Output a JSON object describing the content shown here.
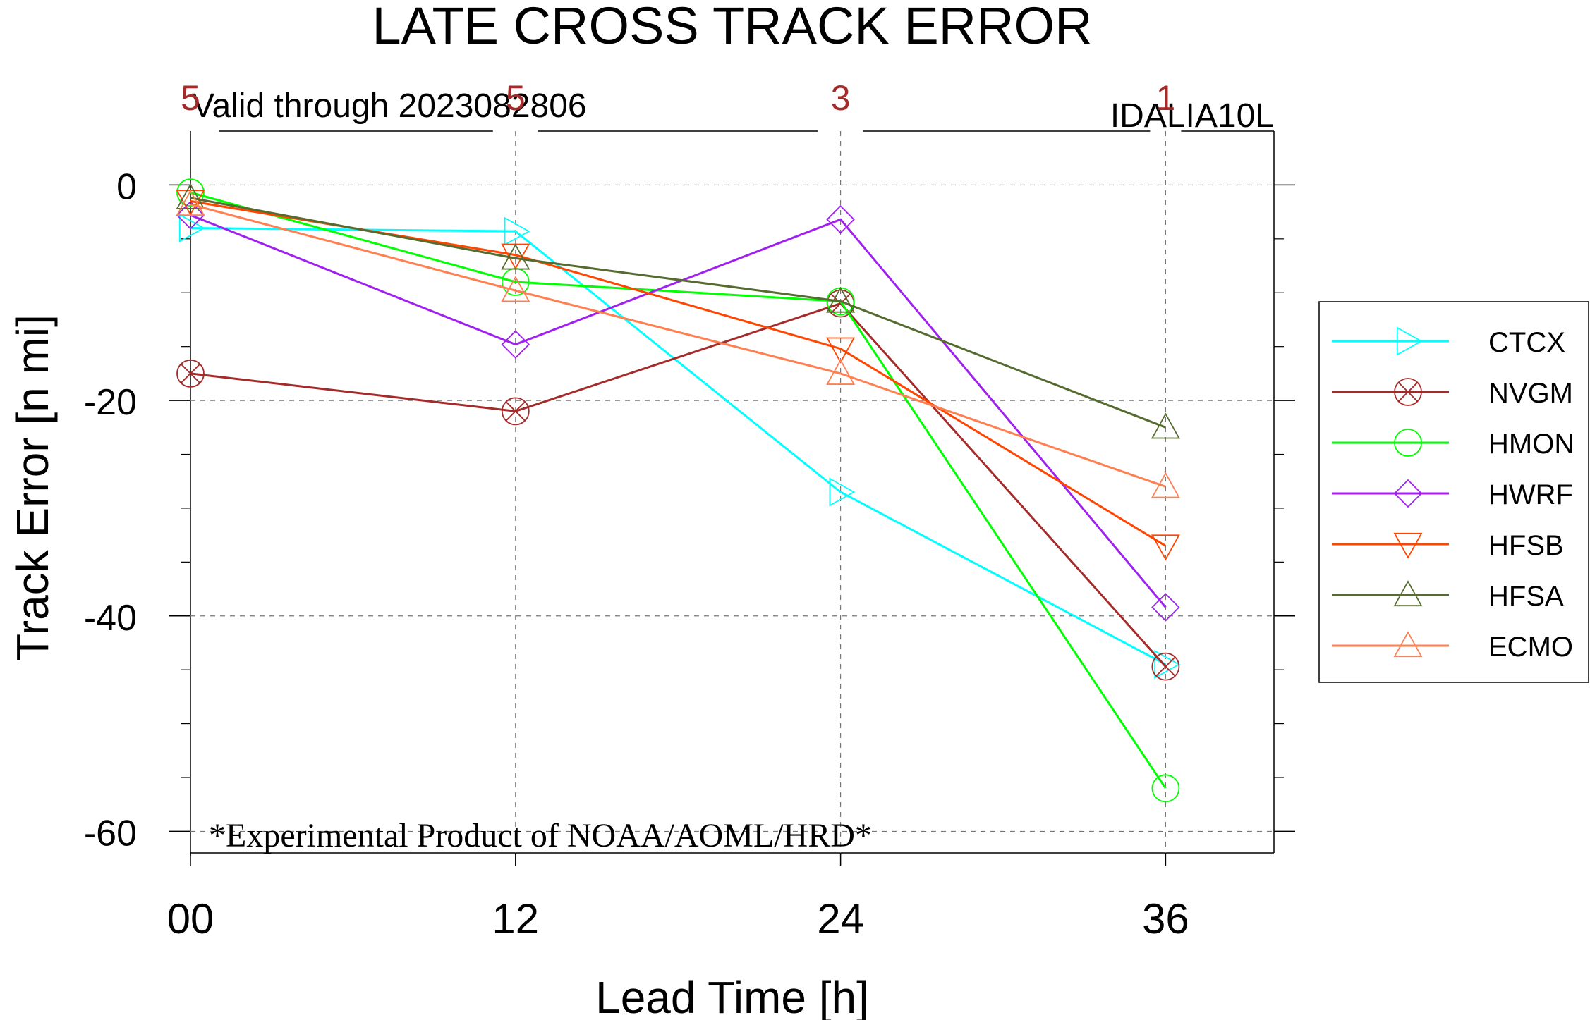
{
  "chart_data": {
    "type": "line",
    "title": "LATE CROSS TRACK ERROR",
    "subtitle_left": "Valid through 2023082806",
    "subtitle_right": "IDALIA10L",
    "xlabel": "Lead Time [h]",
    "ylabel": "Track Error [n mi]",
    "footnote": "*Experimental Product of NOAA/AOML/HRD*",
    "x": [
      0,
      12,
      24,
      36
    ],
    "x_tick_labels": [
      "00",
      "12",
      "24",
      "36"
    ],
    "y_ticks": [
      0,
      -20,
      -40,
      -60
    ],
    "y_tick_labels": [
      "0",
      "-20",
      "-40",
      "-60"
    ],
    "xlim": [
      0,
      40
    ],
    "ylim": [
      -62,
      5
    ],
    "case_counts": [
      "5",
      "5",
      "3",
      "1"
    ],
    "grid": true,
    "legend_position": "right",
    "series": [
      {
        "name": "CTCX",
        "color": "#00ffff",
        "marker": "triangle-right",
        "values": [
          -4,
          -4.3,
          -28.5,
          -44.5
        ]
      },
      {
        "name": "NVGM",
        "color": "#a52a2a",
        "marker": "circle-x",
        "values": [
          -17.5,
          -21,
          -11,
          -44.7
        ]
      },
      {
        "name": "HMON",
        "color": "#00ff00",
        "marker": "circle",
        "values": [
          -0.7,
          -9,
          -10.8,
          -56
        ]
      },
      {
        "name": "HWRF",
        "color": "#a020f0",
        "marker": "diamond",
        "values": [
          -2.8,
          -14.8,
          -3.2,
          -39.2
        ]
      },
      {
        "name": "HFSB",
        "color": "#ff4500",
        "marker": "triangle-down",
        "values": [
          -1.5,
          -6.5,
          -15.2,
          -33.5
        ]
      },
      {
        "name": "HFSA",
        "color": "#556b2f",
        "marker": "triangle-up",
        "values": [
          -1.2,
          -6.8,
          -10.8,
          -22.5
        ]
      },
      {
        "name": "ECMO",
        "color": "#ff7f50",
        "marker": "triangle-up",
        "values": [
          -1.8,
          -9.8,
          -17.5,
          -28
        ]
      }
    ]
  }
}
